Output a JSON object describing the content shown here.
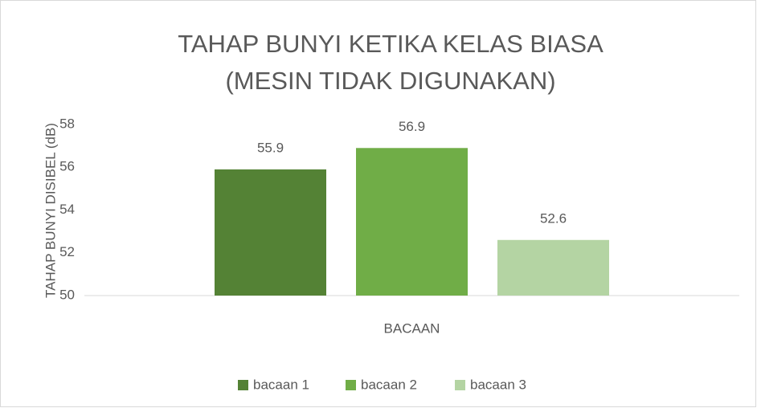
{
  "chart_data": {
    "type": "bar",
    "title": "TAHAP BUNYI KETIKA KELAS BIASA (MESIN TIDAK DIGUNAKAN)",
    "y_label": "TAHAP BUNYI DISIBEL (dB)",
    "categories": [
      "BACAAN"
    ],
    "series": [
      {
        "name": "bacaan 1",
        "color": "#548235",
        "values": [
          55.9
        ]
      },
      {
        "name": "bacaan 2",
        "color": "#70ad47",
        "values": [
          56.9
        ]
      },
      {
        "name": "bacaan 3",
        "color": "#b4d4a3",
        "values": [
          52.6
        ]
      }
    ],
    "ylim": [
      50,
      58
    ],
    "yticks": [
      50,
      52,
      54,
      56,
      58
    ],
    "grid": false,
    "legend": "bottom"
  }
}
